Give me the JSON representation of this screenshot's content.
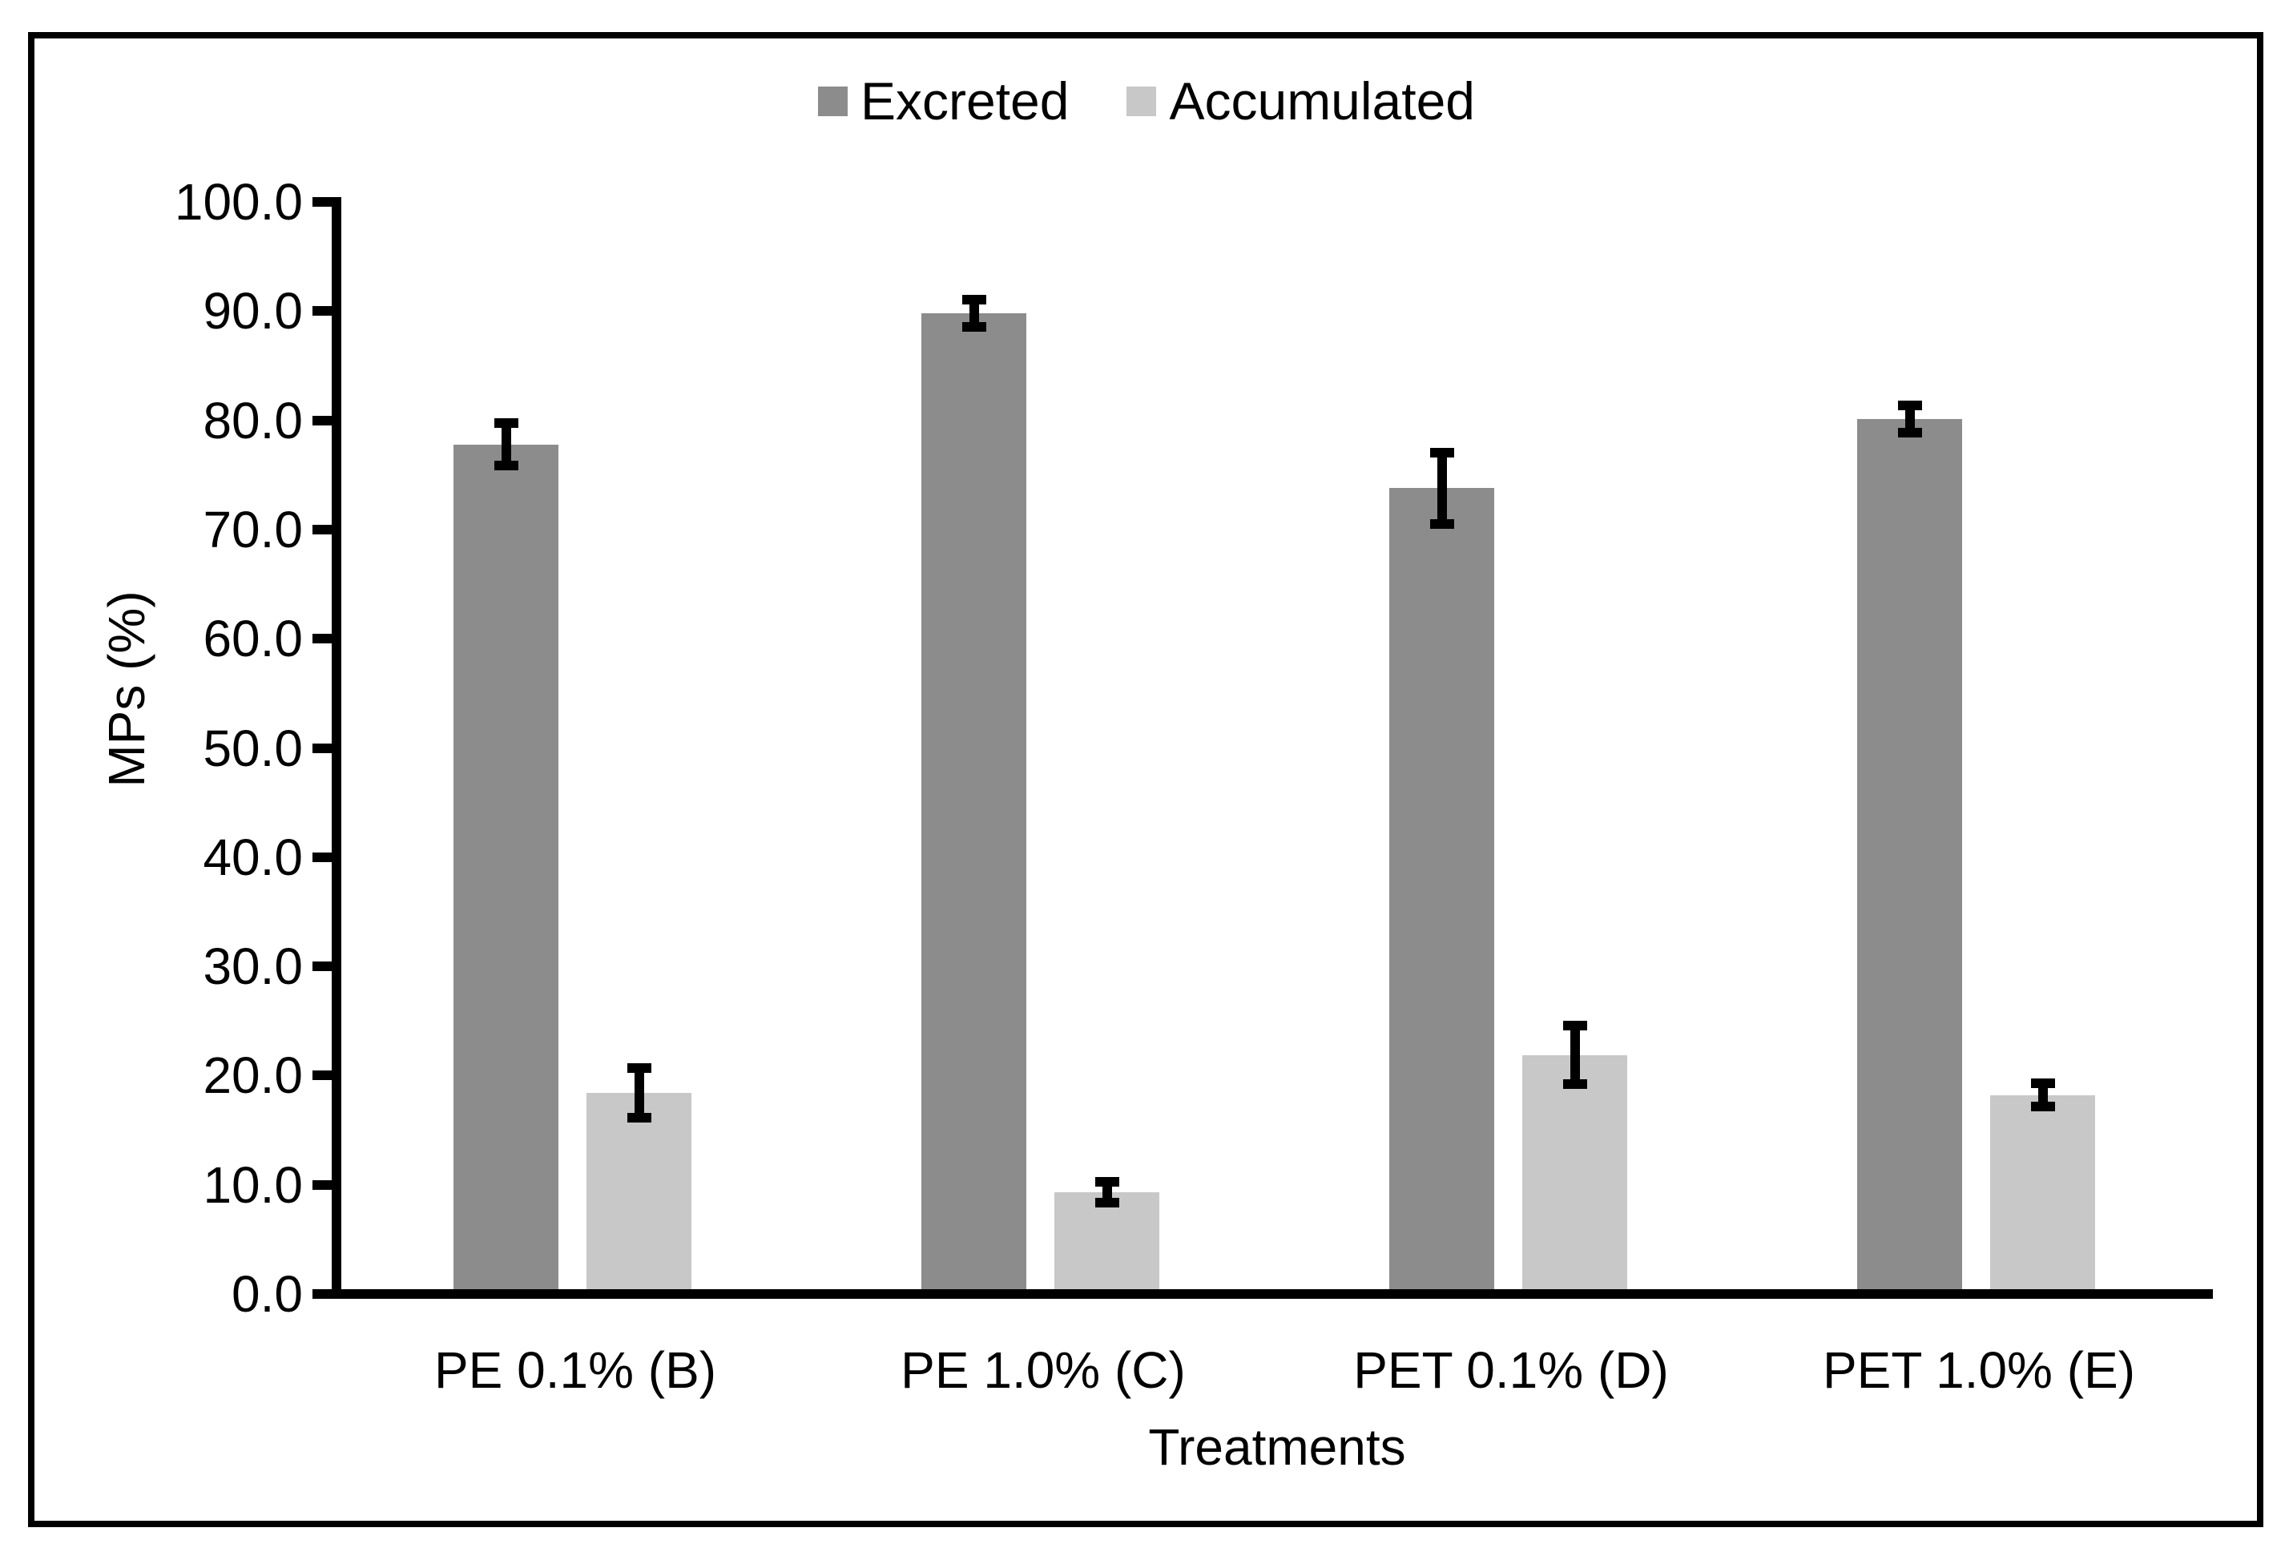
{
  "legend": {
    "items": [
      {
        "label": "Excreted",
        "color": "#8c8c8c"
      },
      {
        "label": "Accumulated",
        "color": "#c8c8c8"
      }
    ]
  },
  "chart_data": {
    "type": "bar",
    "title": "",
    "categories": [
      "PE 0.1% (B)",
      "PE 1.0% (C)",
      "PET 0.1% (D)",
      "PET 1.0% (E)"
    ],
    "series": [
      {
        "name": "Excreted",
        "color": "#8c8c8c",
        "values": [
          77.8,
          89.8,
          73.8,
          80.1
        ],
        "errors": [
          2.4,
          1.7,
          3.7,
          1.7
        ]
      },
      {
        "name": "Accumulated",
        "color": "#c8c8c8",
        "values": [
          18.4,
          9.3,
          21.9,
          18.2
        ],
        "errors": [
          2.7,
          1.4,
          3.1,
          1.5
        ]
      }
    ],
    "xlabel": "Treatments",
    "ylabel": "MPs (%)",
    "ylim": [
      0,
      100
    ],
    "ytick_step": 10,
    "ytick_decimals": 1,
    "grid": false,
    "legend_position": "top-center",
    "error_bars": true,
    "axis_color": "#000000"
  }
}
